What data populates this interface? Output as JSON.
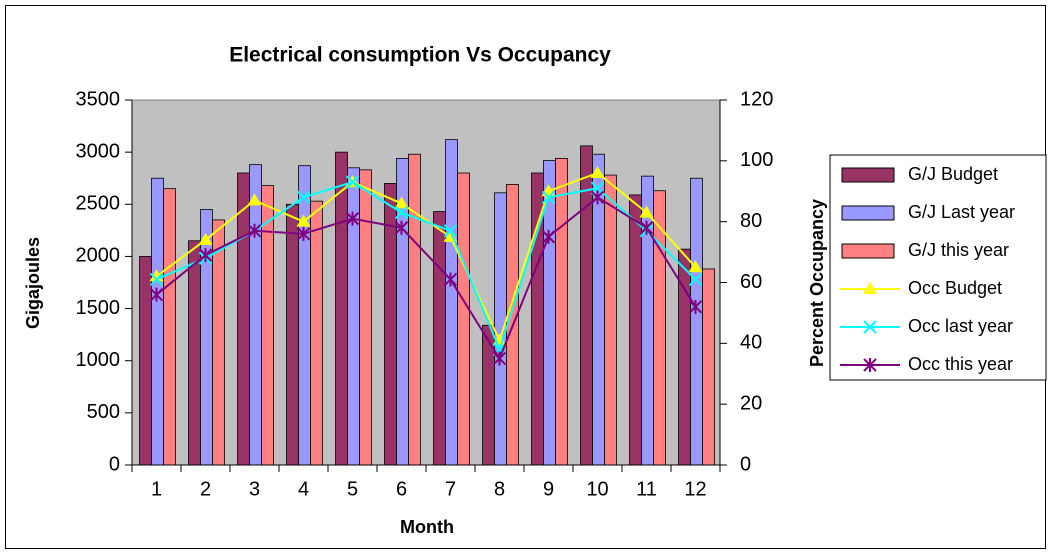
{
  "chart_data": {
    "type": "bar",
    "title": "Electrical consumption Vs Occupancy",
    "x_label": "Month",
    "y_label": "Gigajoules",
    "y2_label": "Percent Occupancy",
    "categories": [
      "1",
      "2",
      "3",
      "4",
      "5",
      "6",
      "7",
      "8",
      "9",
      "10",
      "11",
      "12"
    ],
    "ylim": [
      0,
      3500
    ],
    "yticks": [
      0,
      500,
      1000,
      1500,
      2000,
      2500,
      3000,
      3500
    ],
    "y2lim": [
      0,
      120
    ],
    "y2ticks": [
      0,
      20,
      40,
      60,
      80,
      100,
      120
    ],
    "grid": false,
    "legend": "right",
    "plot_background": "#c0c0c0",
    "series": [
      {
        "name": "G/J Budget",
        "type": "bar",
        "color": "#993366",
        "values": [
          2000,
          2150,
          2800,
          2500,
          3000,
          2700,
          2430,
          1340,
          2800,
          3060,
          2590,
          2070
        ]
      },
      {
        "name": "G/J Last year",
        "type": "bar",
        "color": "#9999ff",
        "values": [
          2750,
          2450,
          2880,
          2870,
          2850,
          2940,
          3120,
          2610,
          2920,
          2980,
          2770,
          2750
        ]
      },
      {
        "name": "G/J this year",
        "type": "bar",
        "color": "#ff8080",
        "values": [
          2650,
          2350,
          2680,
          2530,
          2830,
          2980,
          2800,
          2690,
          2940,
          2780,
          2630,
          1880
        ]
      },
      {
        "name": "Occ Budget",
        "type": "line",
        "axis": "y2",
        "marker": "triangle",
        "color": "#ffff00",
        "values": [
          62,
          74,
          87,
          80,
          93,
          86,
          75,
          41,
          90,
          96,
          83,
          65
        ]
      },
      {
        "name": "Occ last year",
        "type": "line",
        "axis": "y2",
        "marker": "x",
        "color": "#00ffff",
        "values": [
          61,
          68,
          77,
          88,
          93,
          83,
          77,
          38,
          88,
          91,
          77,
          61
        ]
      },
      {
        "name": "Occ this year",
        "type": "line",
        "axis": "y2",
        "marker": "star",
        "color": "#800080",
        "values": [
          56,
          69,
          77,
          76,
          81,
          78,
          61,
          35,
          75,
          88,
          78,
          52
        ]
      }
    ]
  }
}
